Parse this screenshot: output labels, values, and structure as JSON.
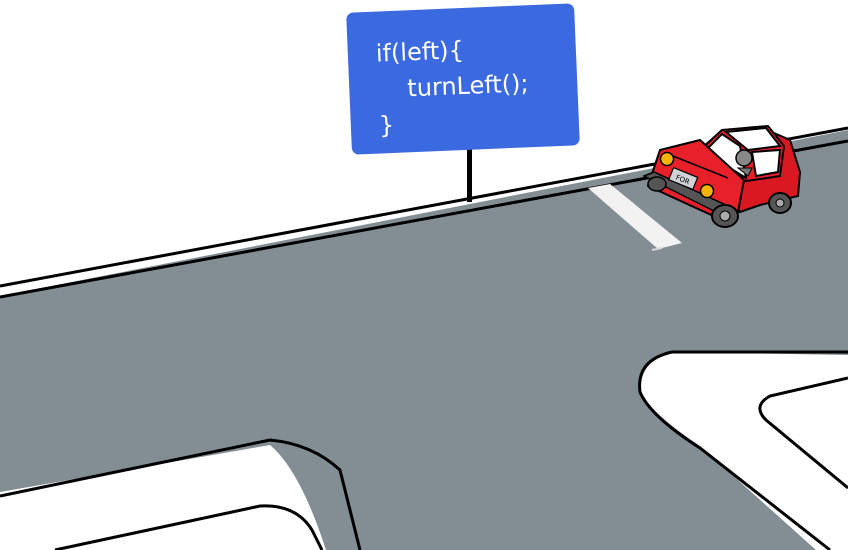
{
  "scene": {
    "title": "Car approaching left turn with conditional code sign"
  },
  "sign": {
    "line1": "if(left){",
    "line2": "turnLeft();",
    "line3": "}"
  },
  "car": {
    "plate": "FOR"
  },
  "colors": {
    "road": "#838e94",
    "sign": "#3b6ae0",
    "car": "#e8202a",
    "headlight": "#f5b400",
    "outline": "#000000"
  }
}
